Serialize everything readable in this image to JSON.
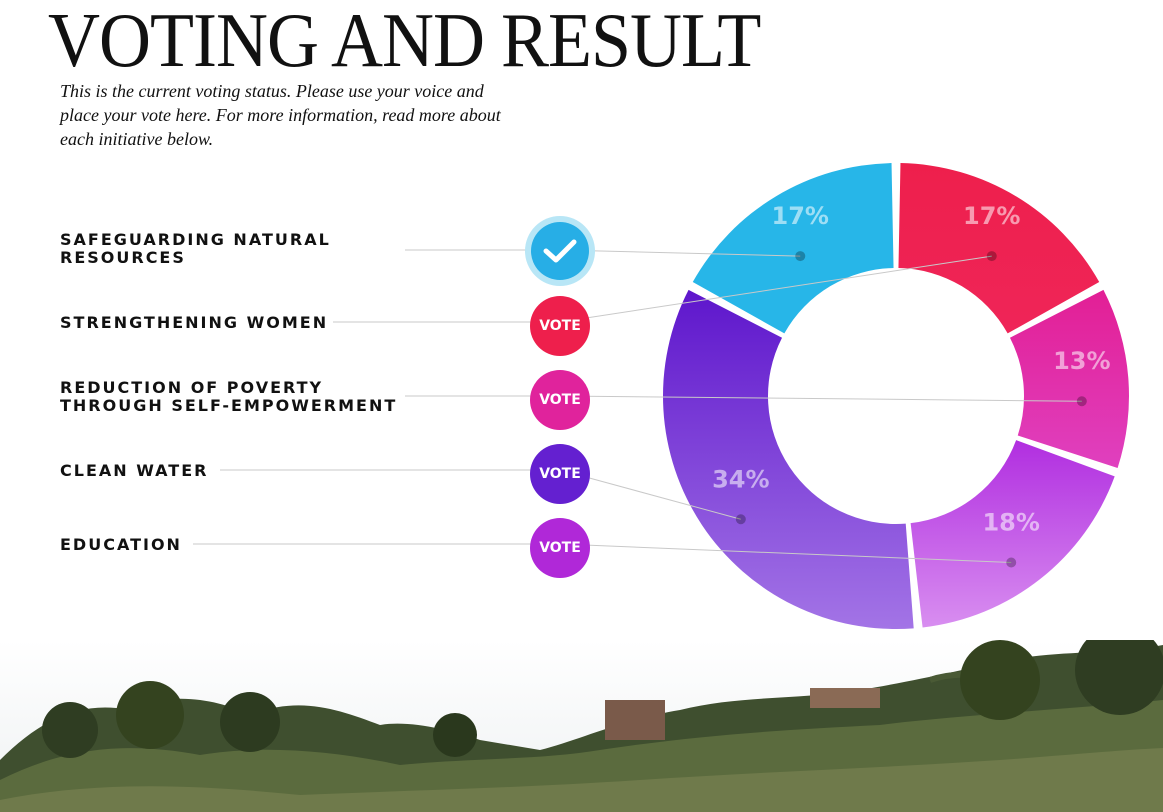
{
  "header": {
    "title": "VOTING AND RESULT",
    "intro": "This is the current voting status. Please use your voice and place your vote here. For more information, read more about each initiative below."
  },
  "initiatives": [
    {
      "label": "SAFEGUARDING NATURAL RESOURCES",
      "button": "",
      "voted": true,
      "percent": "17%",
      "value": 17,
      "color": "#27b6e8"
    },
    {
      "label": "STRENGTHENING WOMEN",
      "button": "VOTE",
      "voted": false,
      "percent": "17%",
      "value": 17,
      "color": "#ee1f4c"
    },
    {
      "label": "REDUCTION OF POVERTY THROUGH SELF-EMPOWERMENT",
      "button": "VOTE",
      "voted": false,
      "percent": "13%",
      "value": 13,
      "color": "#e0239c"
    },
    {
      "label": "CLEAN WATER",
      "button": "VOTE",
      "voted": false,
      "percent": "VOTE",
      "value": 34,
      "color": "#6420d0"
    },
    {
      "label": "EDUCATION",
      "button": "VOTE",
      "voted": false,
      "percent": "18%",
      "value": 18,
      "color": "#b028d8"
    }
  ],
  "chart_data": {
    "type": "pie",
    "categories": [
      "SAFEGUARDING NATURAL RESOURCES",
      "STRENGTHENING WOMEN",
      "REDUCTION OF POVERTY THROUGH SELF-EMPOWERMENT",
      "CLEAN WATER",
      "EDUCATION"
    ],
    "values": [
      17,
      17,
      13,
      34,
      18
    ],
    "labels": [
      "17%",
      "17%",
      "13%",
      "34%",
      "18%"
    ],
    "colors": [
      "#27b6e8",
      "#ee1f4c",
      "#e0239c",
      "#6420d0",
      "#b028d8"
    ]
  }
}
